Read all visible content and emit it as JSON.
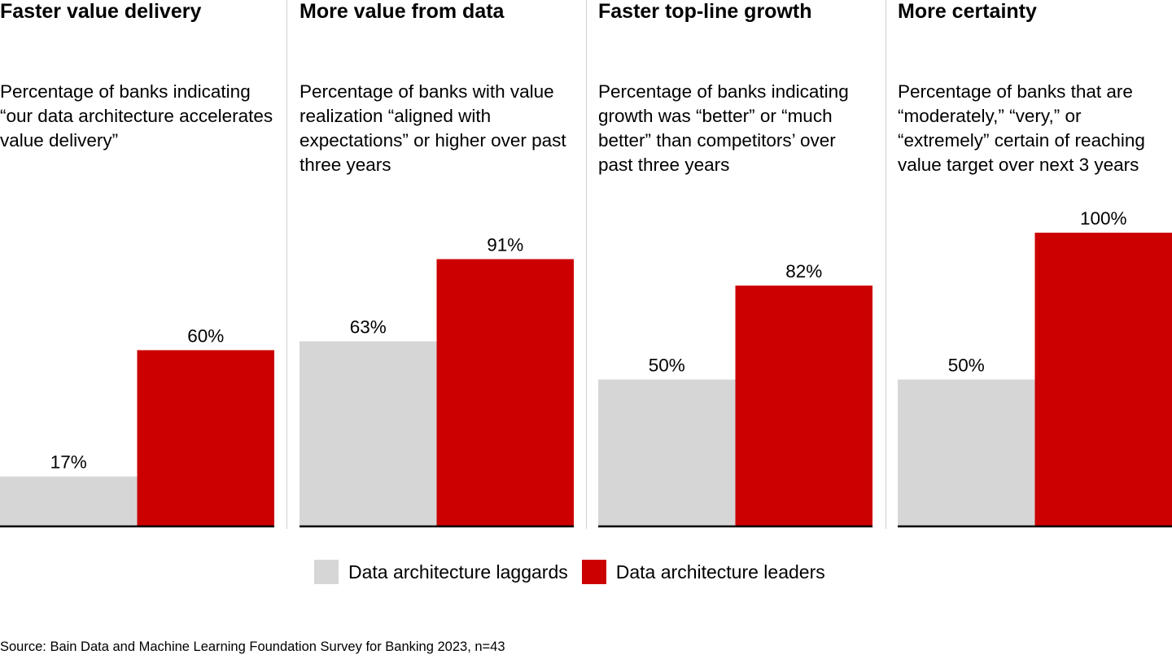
{
  "colors": {
    "laggards": "#d6d6d6",
    "leaders": "#cc0000",
    "baseline": "#000000",
    "divider": "#d0d0d0"
  },
  "chart_data": [
    {
      "type": "bar",
      "title": "Faster value delivery",
      "subtitle": "Percentage of banks indicating “our data architecture accelerates value delivery”",
      "categories": [
        "Data architecture laggards",
        "Data architecture leaders"
      ],
      "values": [
        17,
        60
      ],
      "labels": [
        "17%",
        "60%"
      ],
      "ylim": [
        0,
        100
      ],
      "grid": false
    },
    {
      "type": "bar",
      "title": "More value from data",
      "subtitle": "Percentage of banks with value realization “aligned with expectations” or higher over past three years",
      "categories": [
        "Data architecture laggards",
        "Data architecture leaders"
      ],
      "values": [
        63,
        91
      ],
      "labels": [
        "63%",
        "91%"
      ],
      "ylim": [
        0,
        100
      ],
      "grid": false
    },
    {
      "type": "bar",
      "title": "Faster top-line growth",
      "subtitle": "Percentage of banks indicating growth was “better” or “much better” than competitors’ over past three years",
      "categories": [
        "Data architecture laggards",
        "Data architecture leaders"
      ],
      "values": [
        50,
        82
      ],
      "labels": [
        "50%",
        "82%"
      ],
      "ylim": [
        0,
        100
      ],
      "grid": false
    },
    {
      "type": "bar",
      "title": "More certainty",
      "subtitle": "Percentage of banks that are “moderately,” “very,” or “extremely” certain of reaching value target over next 3 years",
      "categories": [
        "Data architecture laggards",
        "Data architecture leaders"
      ],
      "values": [
        50,
        100
      ],
      "labels": [
        "50%",
        "100%"
      ],
      "ylim": [
        0,
        100
      ],
      "grid": false
    }
  ],
  "legend": {
    "position": "bottom",
    "items": [
      "Data architecture laggards",
      "Data architecture leaders"
    ]
  },
  "source": "Source: Bain Data and Machine Learning Foundation Survey for Banking 2023, n=43"
}
